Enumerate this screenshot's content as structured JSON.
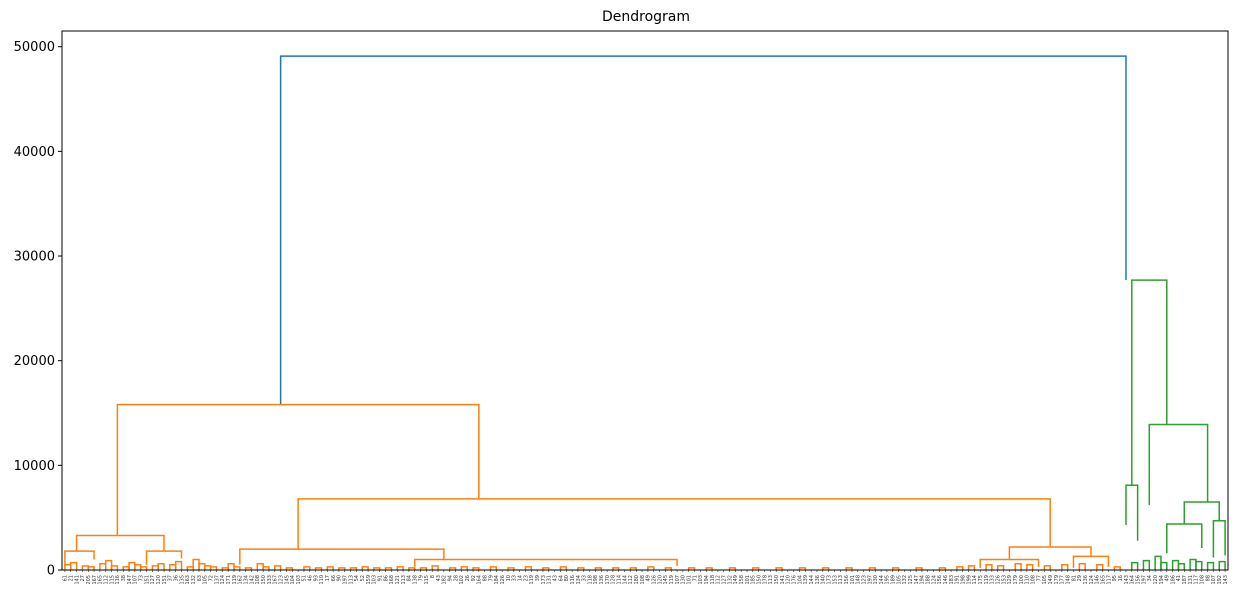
{
  "chart_data": {
    "type": "dendrogram",
    "title": "Dendrogram",
    "xlabel": "",
    "ylabel": "",
    "ylim": [
      0,
      51500
    ],
    "yticks": [
      0,
      10000,
      20000,
      30000,
      40000,
      50000
    ],
    "grid": false,
    "legend": "none",
    "colors": {
      "root": "#1f77b4",
      "cluster1": "#ff7f0e",
      "cluster2": "#2ca02c"
    },
    "leaf_count": 200,
    "cluster_split_leaf": 182,
    "links": [
      {
        "x1": 37,
        "x2": 182,
        "h1": 15800,
        "h2": 27700,
        "height": 49100,
        "color": "root"
      },
      {
        "x1": 9,
        "x2": 71,
        "h1": 3300,
        "h2": 6800,
        "height": 15800,
        "color": "cluster1"
      },
      {
        "x1": 2,
        "x2": 17,
        "h1": 1800,
        "h2": 1800,
        "height": 3300,
        "color": "cluster1"
      },
      {
        "x1": 0,
        "x2": 5,
        "h1": 400,
        "h2": 1000,
        "height": 1800,
        "color": "cluster1"
      },
      {
        "x1": 14,
        "x2": 20,
        "h1": 500,
        "h2": 1100,
        "height": 1800,
        "color": "cluster1"
      },
      {
        "x1": 40,
        "x2": 169,
        "h1": 2000,
        "h2": 2200,
        "height": 6800,
        "color": "cluster1"
      },
      {
        "x1": 30,
        "x2": 65,
        "h1": 500,
        "h2": 1000,
        "height": 2000,
        "color": "cluster1"
      },
      {
        "x1": 60,
        "x2": 105,
        "h1": 300,
        "h2": 400,
        "height": 1000,
        "color": "cluster1"
      },
      {
        "x1": 162,
        "x2": 176,
        "h1": 1000,
        "h2": 1300,
        "height": 2200,
        "color": "cluster1"
      },
      {
        "x1": 157,
        "x2": 167,
        "h1": 200,
        "h2": 300,
        "height": 1000,
        "color": "cluster1"
      },
      {
        "x1": 173,
        "x2": 179,
        "h1": 200,
        "h2": 300,
        "height": 1300,
        "color": "cluster1"
      },
      {
        "x1": 183,
        "x2": 189,
        "h1": 8100,
        "h2": 13900,
        "height": 27700,
        "color": "cluster2"
      },
      {
        "x1": 182,
        "x2": 184,
        "h1": 4300,
        "h2": 2800,
        "height": 8100,
        "color": "cluster2"
      },
      {
        "x1": 186,
        "x2": 196,
        "h1": 6200,
        "h2": 6500,
        "height": 13900,
        "color": "cluster2"
      },
      {
        "x1": 192,
        "x2": 198,
        "h1": 4400,
        "h2": 4700,
        "height": 6500,
        "color": "cluster2"
      },
      {
        "x1": 189,
        "x2": 195,
        "h1": 1600,
        "h2": 2100,
        "height": 4400,
        "color": "cluster2"
      },
      {
        "x1": 197,
        "x2": 199,
        "h1": 1200,
        "h2": 1400,
        "height": 4700,
        "color": "cluster2"
      }
    ],
    "minor_merges": [
      [
        0,
        500
      ],
      [
        1,
        700
      ],
      [
        3,
        400
      ],
      [
        4,
        300
      ],
      [
        6,
        600
      ],
      [
        7,
        900
      ],
      [
        8,
        400
      ],
      [
        10,
        300
      ],
      [
        11,
        700
      ],
      [
        12,
        500
      ],
      [
        13,
        300
      ],
      [
        15,
        400
      ],
      [
        16,
        600
      ],
      [
        18,
        500
      ],
      [
        19,
        800
      ],
      [
        21,
        300
      ],
      [
        22,
        1000
      ],
      [
        23,
        600
      ],
      [
        24,
        400
      ],
      [
        25,
        300
      ],
      [
        27,
        200
      ],
      [
        28,
        600
      ],
      [
        29,
        300
      ],
      [
        31,
        200
      ],
      [
        33,
        600
      ],
      [
        34,
        300
      ],
      [
        36,
        400
      ],
      [
        38,
        200
      ],
      [
        41,
        300
      ],
      [
        43,
        200
      ],
      [
        45,
        300
      ],
      [
        47,
        200
      ],
      [
        49,
        200
      ],
      [
        51,
        300
      ],
      [
        53,
        200
      ],
      [
        55,
        200
      ],
      [
        57,
        300
      ],
      [
        59,
        200
      ],
      [
        61,
        200
      ],
      [
        63,
        400
      ],
      [
        66,
        200
      ],
      [
        68,
        300
      ],
      [
        70,
        200
      ],
      [
        73,
        300
      ],
      [
        76,
        200
      ],
      [
        79,
        300
      ],
      [
        82,
        200
      ],
      [
        85,
        300
      ],
      [
        88,
        200
      ],
      [
        91,
        200
      ],
      [
        94,
        200
      ],
      [
        97,
        200
      ],
      [
        100,
        300
      ],
      [
        103,
        200
      ],
      [
        107,
        200
      ],
      [
        110,
        200
      ],
      [
        114,
        200
      ],
      [
        118,
        200
      ],
      [
        122,
        200
      ],
      [
        126,
        200
      ],
      [
        130,
        200
      ],
      [
        134,
        200
      ],
      [
        138,
        200
      ],
      [
        142,
        200
      ],
      [
        146,
        200
      ],
      [
        150,
        200
      ],
      [
        153,
        300
      ],
      [
        155,
        400
      ],
      [
        158,
        500
      ],
      [
        160,
        400
      ],
      [
        163,
        600
      ],
      [
        165,
        500
      ],
      [
        168,
        400
      ],
      [
        171,
        500
      ],
      [
        174,
        600
      ],
      [
        177,
        500
      ],
      [
        180,
        300
      ],
      [
        183,
        700
      ],
      [
        185,
        900
      ],
      [
        187,
        1300
      ],
      [
        188,
        700
      ],
      [
        190,
        900
      ],
      [
        191,
        600
      ],
      [
        193,
        1000
      ],
      [
        194,
        800
      ],
      [
        196,
        700
      ],
      [
        198,
        800
      ]
    ],
    "leaves": [
      "61",
      "21",
      "141",
      "27",
      "205",
      "167",
      "165",
      "112",
      "115",
      "116",
      "38",
      "147",
      "107",
      "73",
      "151",
      "127",
      "120",
      "151",
      "37",
      "36",
      "135",
      "163",
      "132",
      "63",
      "105",
      "72",
      "137",
      "124",
      "171",
      "119",
      "162",
      "134",
      "142",
      "108",
      "150",
      "133",
      "167",
      "123",
      "145",
      "104",
      "103",
      "51",
      "46",
      "93",
      "110",
      "17",
      "66",
      "90",
      "197",
      "113",
      "54",
      "52",
      "159",
      "103",
      "91",
      "86",
      "168",
      "121",
      "113",
      "84",
      "138",
      "79",
      "115",
      "8",
      "43",
      "182",
      "94",
      "28",
      "102",
      "26",
      "92",
      "164",
      "88",
      "79",
      "184",
      "126",
      "10",
      "33",
      "14",
      "23",
      "119",
      "39",
      "173",
      "131",
      "43",
      "64",
      "80",
      "116",
      "134",
      "33",
      "118",
      "198",
      "136",
      "170",
      "128",
      "114",
      "144",
      "112",
      "180",
      "108",
      "49",
      "126",
      "120",
      "145",
      "119",
      "107",
      "130",
      "101",
      "71",
      "103",
      "194",
      "118",
      "112",
      "127",
      "132",
      "149",
      "158",
      "101",
      "185",
      "150",
      "178",
      "113",
      "150",
      "141",
      "120",
      "176",
      "104",
      "139",
      "144",
      "136",
      "140",
      "173",
      "153",
      "113",
      "156",
      "101",
      "148",
      "123",
      "197",
      "130",
      "144",
      "195",
      "189",
      "105",
      "132",
      "125",
      "147",
      "194",
      "188",
      "124",
      "156",
      "146",
      "183",
      "191",
      "198",
      "199",
      "114",
      "175",
      "119",
      "133",
      "126",
      "153",
      "129",
      "179",
      "100",
      "110",
      "108",
      "77",
      "105",
      "149",
      "179",
      "177",
      "148",
      "81",
      "29",
      "136",
      "124",
      "146",
      "165",
      "117",
      "95",
      "16",
      "143",
      "164",
      "156",
      "197",
      "34",
      "120",
      "194",
      "49",
      "186",
      "41",
      "187",
      "131",
      "117",
      "108",
      "88",
      "107",
      "192",
      "143"
    ]
  }
}
